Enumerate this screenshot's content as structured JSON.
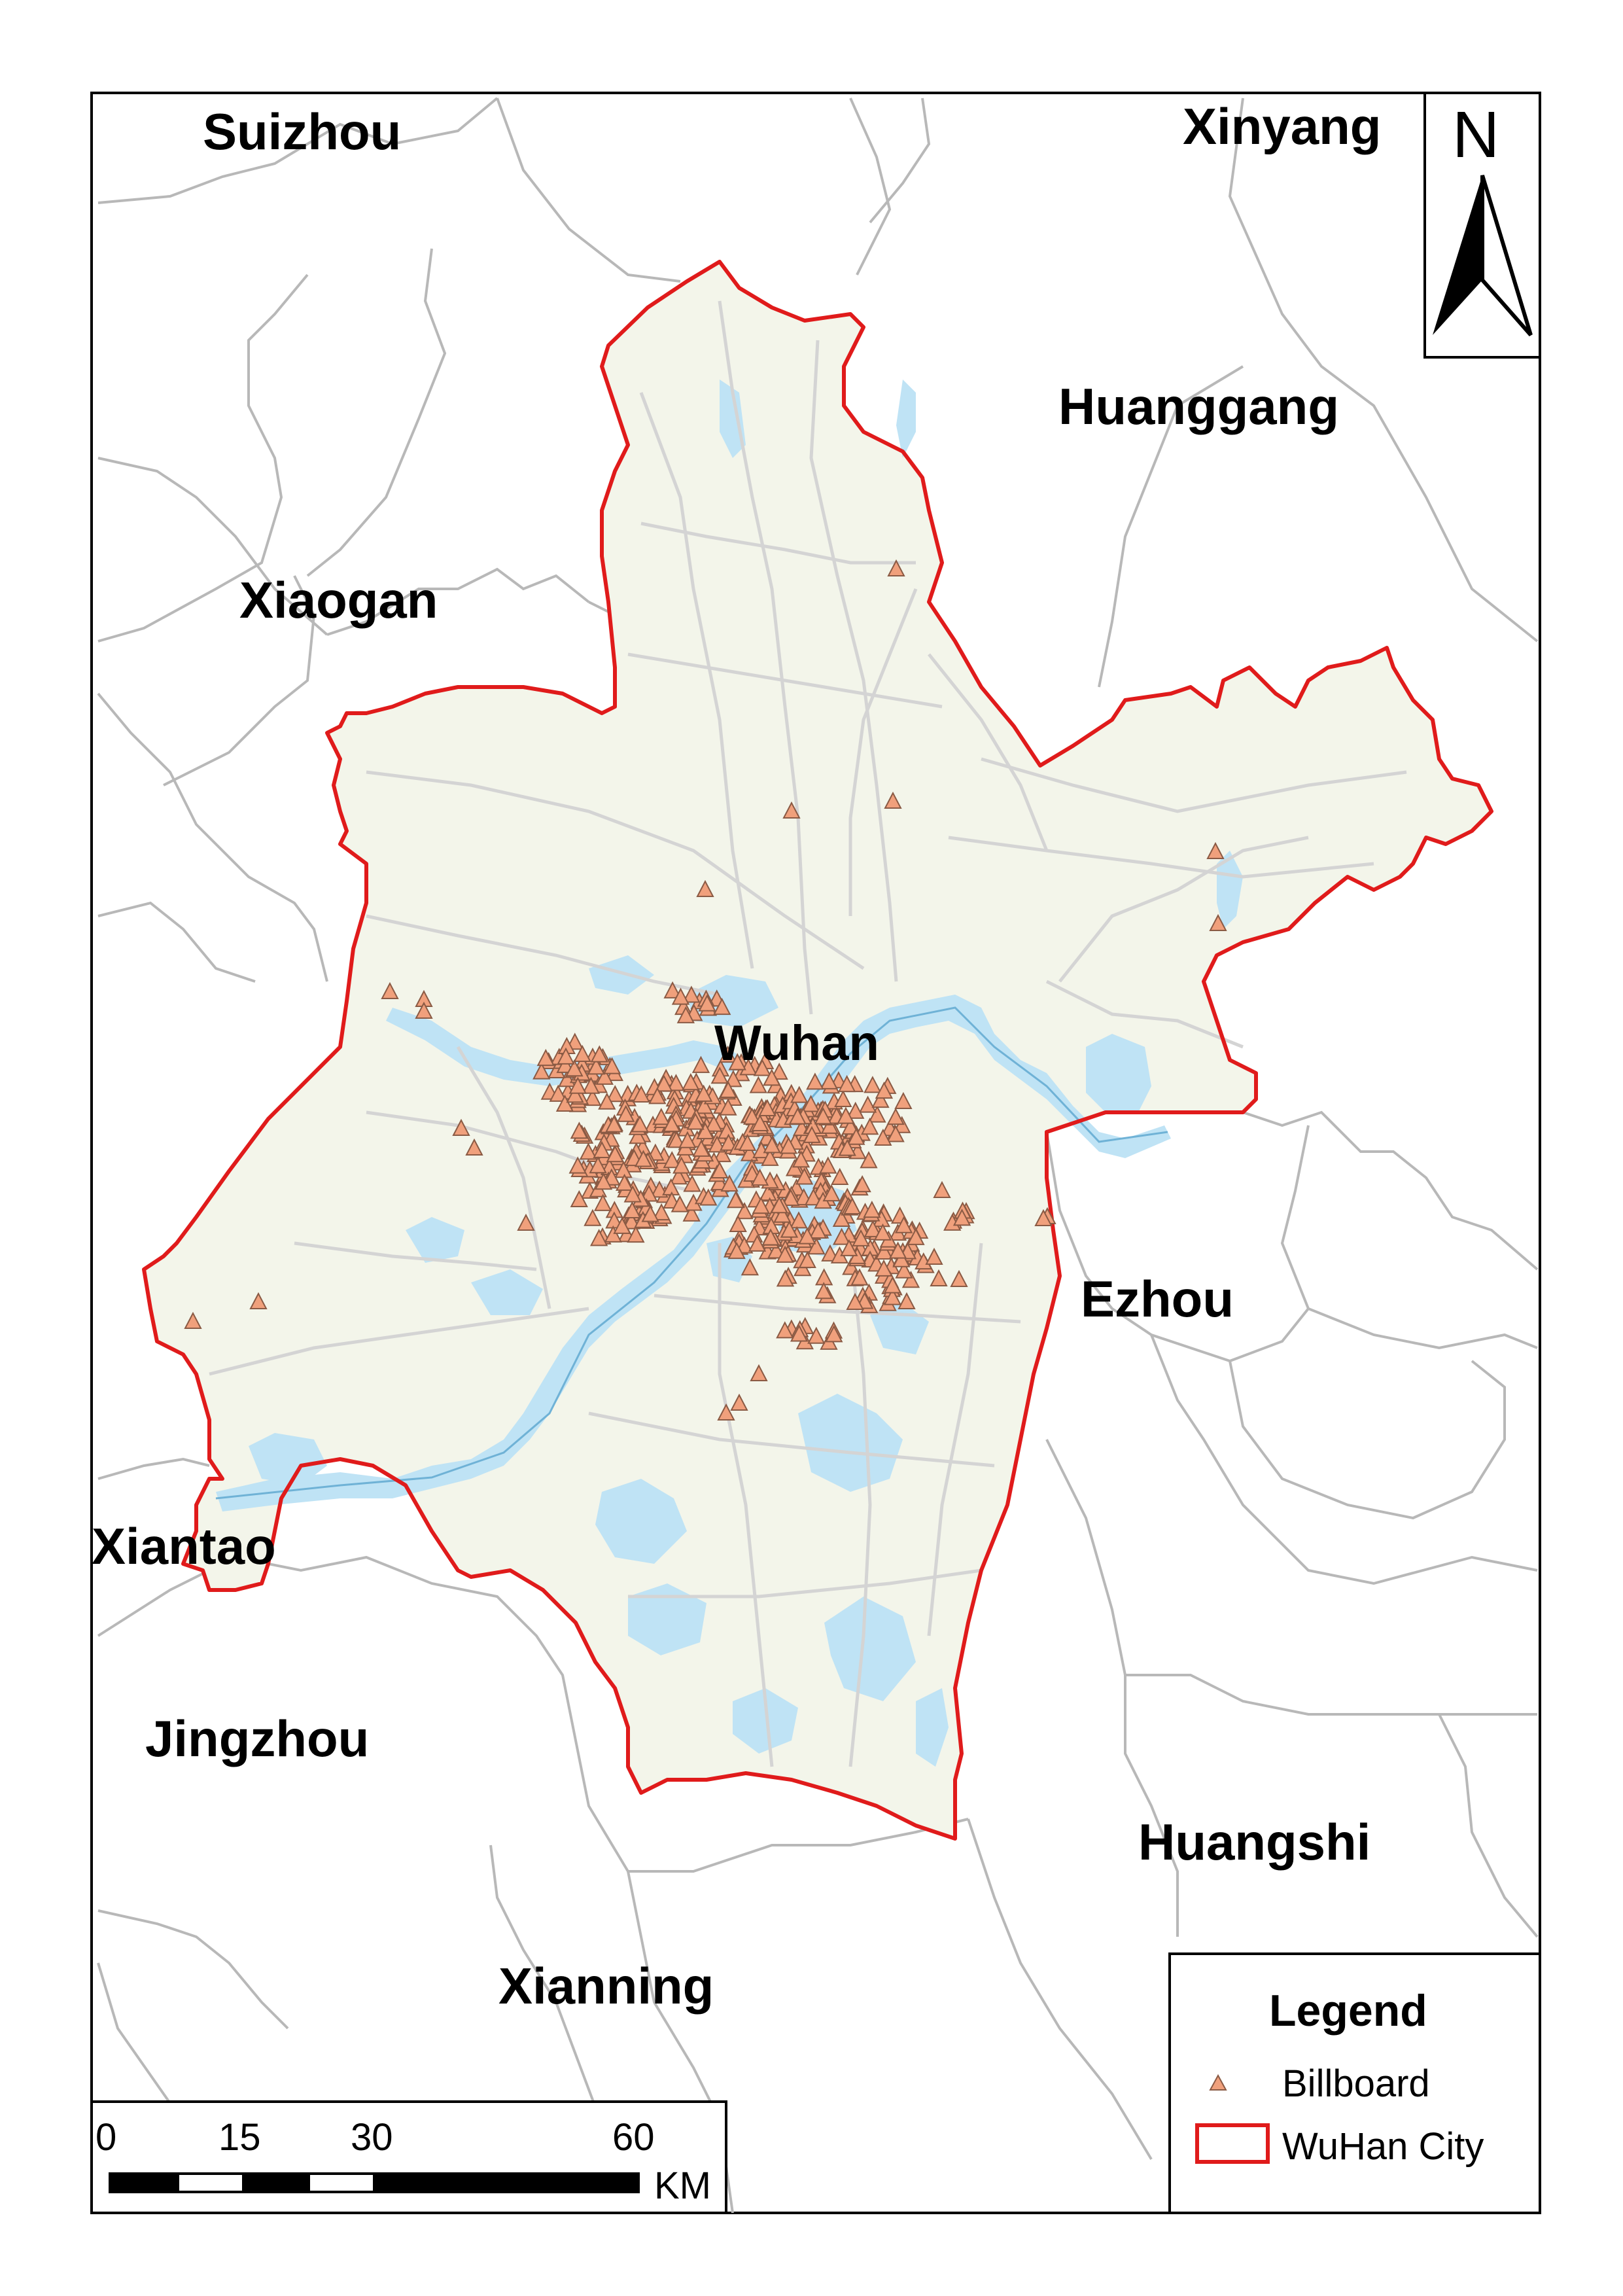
{
  "map": {
    "cities": [
      {
        "id": "suizhou",
        "name": "Suizhou"
      },
      {
        "id": "xinyang",
        "name": "Xinyang"
      },
      {
        "id": "huanggang",
        "name": "Huanggang"
      },
      {
        "id": "xiaogan",
        "name": "Xiaogan"
      },
      {
        "id": "wuhan",
        "name": "Wuhan"
      },
      {
        "id": "ezhou",
        "name": "Ezhou"
      },
      {
        "id": "xiantao",
        "name": "Xiantao"
      },
      {
        "id": "jingzhou",
        "name": "Jingzhou"
      },
      {
        "id": "huangshi",
        "name": "Huangshi"
      },
      {
        "id": "xianning",
        "name": "Xianning"
      }
    ],
    "north_arrow": {
      "label": "N"
    },
    "scale_bar": {
      "ticks": [
        "0",
        "15",
        "30",
        "60"
      ],
      "unit": "KM"
    },
    "legend": {
      "title": "Legend",
      "items": [
        {
          "label": "Billboard",
          "symbol": "triangle",
          "color": "#f0a07c"
        },
        {
          "label": "WuHan City",
          "symbol": "rectangle-outline",
          "color": "#e01b1b"
        }
      ]
    },
    "colors": {
      "boundary": "#e01b1b",
      "land": "#f3f5ea",
      "water": "#bfe3f5",
      "river": "#9ecfe6",
      "roads": "#d4d4d4",
      "neighbor_borders": "#b8b8b8",
      "billboard_fill": "#f0a07c",
      "billboard_stroke": "#8a5a44"
    }
  }
}
